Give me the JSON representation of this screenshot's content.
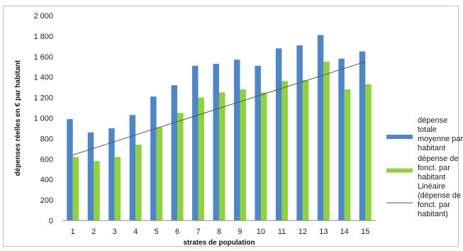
{
  "chart_data": {
    "type": "bar",
    "categories": [
      "1",
      "2",
      "3",
      "4",
      "5",
      "6",
      "7",
      "8",
      "9",
      "10",
      "11",
      "12",
      "13",
      "14",
      "15"
    ],
    "series": [
      {
        "name": "dépense totale moyenne par habitant",
        "color": "#4f86c6",
        "values": [
          990,
          860,
          900,
          1030,
          1210,
          1320,
          1510,
          1530,
          1570,
          1510,
          1680,
          1710,
          1810,
          1580,
          1650
        ]
      },
      {
        "name": "dépense de fonct. par habitant",
        "color": "#8fd13f",
        "values": [
          620,
          580,
          620,
          740,
          910,
          1050,
          1200,
          1250,
          1280,
          1250,
          1360,
          1370,
          1550,
          1280,
          1330
        ]
      }
    ],
    "trendline": {
      "name": "Linéaire (dépense de fonct. par habitant)",
      "color": "#555555",
      "start": 640,
      "end": 1550
    },
    "xlabel": "strates de population",
    "ylabel": "dépenses réelles en € par habitant",
    "ylim": [
      0,
      2000
    ],
    "ytick_step": 200,
    "ytick_labels": [
      "0",
      "200",
      "400",
      "600",
      "800",
      "1 000",
      "1 200",
      "1 400",
      "1 600",
      "1 800",
      "2 000"
    ],
    "legend_lines": [
      [
        "dépense",
        "totale",
        "moyenne par",
        "habitant"
      ],
      [
        "dépense de",
        "fonct. par",
        "habitant"
      ],
      [
        "Linéaire",
        "(dépense de",
        "fonct. par",
        "habitant)"
      ]
    ],
    "legend_position": "right",
    "grid": false
  }
}
